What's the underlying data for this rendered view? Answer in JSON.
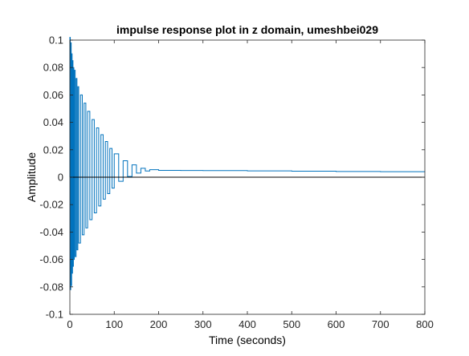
{
  "chart_data": {
    "type": "line",
    "title": "impulse response plot in z domain, umeshbei029",
    "xlabel": "Time (seconds)",
    "ylabel": "Amplitude",
    "xlim": [
      0,
      800
    ],
    "ylim": [
      -0.1,
      0.1
    ],
    "xticks": [
      0,
      100,
      200,
      300,
      400,
      500,
      600,
      700,
      800
    ],
    "xtick_labels": [
      "0",
      "100",
      "200",
      "300",
      "400",
      "500",
      "600",
      "700",
      "800"
    ],
    "yticks": [
      0.1,
      0.08,
      0.06,
      0.04,
      0.02,
      0,
      -0.02,
      -0.04,
      -0.06,
      -0.08,
      -0.1
    ],
    "ytick_labels": [
      "0.1",
      "0.08",
      "0.06",
      "0.04",
      "0.02",
      "0",
      "-0.02",
      "-0.04",
      "-0.06",
      "-0.08",
      "-0.1"
    ],
    "grid": false,
    "zero_line": true,
    "series": [
      {
        "style": "stairs",
        "color": "#0072BD",
        "x": [
          0,
          1,
          2,
          3,
          4,
          5,
          6,
          7,
          8,
          9,
          10,
          12,
          14,
          16,
          18,
          20,
          24,
          28,
          32,
          36,
          40,
          45,
          50,
          55,
          60,
          65,
          70,
          75,
          80,
          85,
          90,
          95,
          100,
          110,
          120,
          130,
          140,
          150,
          160,
          170,
          180,
          200,
          250,
          300,
          400,
          500,
          600,
          700,
          800
        ],
        "y": [
          0.102,
          -0.082,
          0.098,
          -0.079,
          0.09,
          -0.07,
          0.085,
          -0.065,
          0.08,
          -0.06,
          0.078,
          -0.058,
          0.072,
          -0.053,
          0.066,
          -0.048,
          0.06,
          -0.042,
          0.054,
          -0.037,
          0.048,
          -0.031,
          0.042,
          -0.026,
          0.036,
          -0.021,
          0.031,
          -0.016,
          0.026,
          -0.012,
          0.021,
          -0.008,
          0.017,
          -0.003,
          0.012,
          0.0005,
          0.009,
          0.003,
          0.0065,
          0.0045,
          0.0055,
          0.005,
          0.0049,
          0.0048,
          0.0046,
          0.0044,
          0.0042,
          0.004,
          0.0038
        ]
      }
    ]
  }
}
